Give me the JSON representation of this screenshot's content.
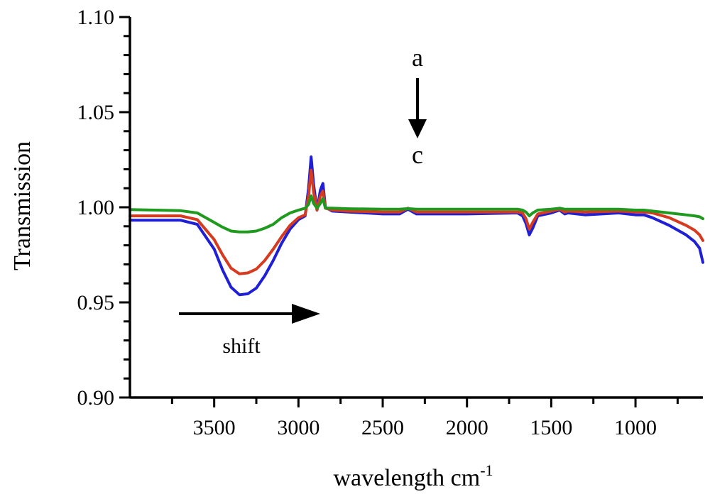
{
  "chart_data": {
    "type": "line",
    "title": "",
    "xlabel": "wavelength cm",
    "xlabel_sup": "-1",
    "ylabel": "Transmission",
    "xlim": [
      4000,
      600
    ],
    "ylim": [
      0.9,
      1.1
    ],
    "x_reversed": true,
    "grid": false,
    "legend": "none",
    "xticks": [
      3500,
      3000,
      2500,
      2000,
      1500,
      1000
    ],
    "xtick_labels": [
      "3500",
      "3000",
      "2500",
      "2000",
      "1500",
      "1000"
    ],
    "yticks": [
      0.9,
      0.95,
      1.0,
      1.05,
      1.1
    ],
    "ytick_labels": [
      "0.90",
      "0.95",
      "1.00",
      "1.05",
      "1.10"
    ],
    "series": [
      {
        "color": "#1f1fd6",
        "x": [
          4000,
          3700,
          3600,
          3500,
          3450,
          3400,
          3350,
          3300,
          3250,
          3200,
          3150,
          3100,
          3050,
          3000,
          2960,
          2940,
          2925,
          2910,
          2890,
          2870,
          2855,
          2840,
          2800,
          2700,
          2500,
          2400,
          2350,
          2300,
          2000,
          1700,
          1670,
          1650,
          1630,
          1610,
          1580,
          1500,
          1450,
          1420,
          1400,
          1300,
          1100,
          1000,
          950,
          900,
          800,
          700,
          650,
          620,
          600
        ],
        "y": [
          0.9932,
          0.9932,
          0.991,
          0.978,
          0.967,
          0.958,
          0.954,
          0.9545,
          0.9575,
          0.964,
          0.972,
          0.981,
          0.9885,
          0.9935,
          0.9955,
          1.01,
          1.0265,
          1.012,
          0.9985,
          1.009,
          1.0125,
          1.0,
          0.998,
          0.9975,
          0.9965,
          0.9965,
          0.999,
          0.9965,
          0.9965,
          0.997,
          0.9955,
          0.9915,
          0.9855,
          0.989,
          0.9955,
          0.997,
          0.9985,
          0.9965,
          0.997,
          0.996,
          0.997,
          0.996,
          0.996,
          0.9945,
          0.9905,
          0.9855,
          0.982,
          0.9785,
          0.971
        ]
      },
      {
        "color": "#d63a1f",
        "x": [
          4000,
          3700,
          3600,
          3500,
          3450,
          3400,
          3350,
          3300,
          3250,
          3200,
          3150,
          3100,
          3050,
          3000,
          2960,
          2940,
          2925,
          2910,
          2890,
          2870,
          2855,
          2840,
          2800,
          2700,
          2500,
          2400,
          2350,
          2300,
          2000,
          1700,
          1670,
          1650,
          1630,
          1610,
          1580,
          1500,
          1450,
          1420,
          1400,
          1300,
          1100,
          1000,
          950,
          900,
          800,
          700,
          650,
          620,
          600
        ],
        "y": [
          0.9955,
          0.9955,
          0.9935,
          0.983,
          0.975,
          0.968,
          0.965,
          0.9655,
          0.9675,
          0.972,
          0.978,
          0.9845,
          0.9905,
          0.9945,
          0.996,
          1.006,
          1.0195,
          1.008,
          0.9985,
          1.006,
          1.0085,
          0.9995,
          0.9985,
          0.998,
          0.9975,
          0.9975,
          0.9995,
          0.9975,
          0.9975,
          0.9975,
          0.997,
          0.994,
          0.9885,
          0.992,
          0.9965,
          0.998,
          0.999,
          0.9975,
          0.998,
          0.9975,
          0.998,
          0.9975,
          0.9975,
          0.997,
          0.9945,
          0.9905,
          0.988,
          0.9855,
          0.9825
        ]
      },
      {
        "color": "#1f9a1f",
        "x": [
          4000,
          3700,
          3600,
          3500,
          3450,
          3400,
          3350,
          3300,
          3250,
          3200,
          3150,
          3100,
          3050,
          3000,
          2960,
          2940,
          2925,
          2910,
          2890,
          2870,
          2855,
          2840,
          2800,
          2700,
          2500,
          2400,
          2350,
          2300,
          2000,
          1700,
          1670,
          1650,
          1630,
          1610,
          1580,
          1500,
          1450,
          1420,
          1400,
          1300,
          1100,
          1000,
          950,
          900,
          800,
          700,
          650,
          620,
          600
        ],
        "y": [
          0.9988,
          0.9982,
          0.997,
          0.992,
          0.9895,
          0.9875,
          0.987,
          0.987,
          0.9875,
          0.989,
          0.991,
          0.9945,
          0.997,
          0.9985,
          0.9995,
          1.0015,
          1.006,
          1.002,
          0.9995,
          1.002,
          1.0045,
          0.9995,
          0.9995,
          0.9992,
          0.999,
          0.999,
          0.9993,
          0.999,
          0.999,
          0.999,
          0.9985,
          0.9975,
          0.9955,
          0.997,
          0.9985,
          0.999,
          0.9995,
          0.999,
          0.999,
          0.999,
          0.999,
          0.9985,
          0.9985,
          0.998,
          0.997,
          0.996,
          0.9955,
          0.995,
          0.994
        ]
      }
    ],
    "annotations": {
      "top_letter": "a",
      "bottom_letter": "c",
      "shift_label": "shift"
    }
  }
}
